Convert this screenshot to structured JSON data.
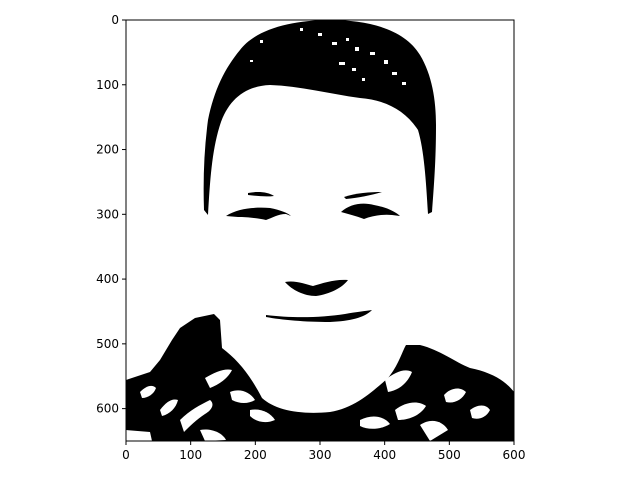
{
  "chart_data": {
    "type": "image",
    "title": "",
    "xlabel": "",
    "ylabel": "",
    "xlim": [
      0,
      600
    ],
    "ylim": [
      650,
      0
    ],
    "x_ticks": [
      "0",
      "100",
      "200",
      "300",
      "400",
      "500",
      "600"
    ],
    "y_ticks": [
      "0",
      "100",
      "200",
      "300",
      "400",
      "500",
      "600"
    ],
    "colormap": "binary (black / white)",
    "content": "thresholded black-and-white portrait of a smiling face",
    "grid": false
  },
  "colors": {
    "foreground": "#000000",
    "background": "#ffffff"
  }
}
